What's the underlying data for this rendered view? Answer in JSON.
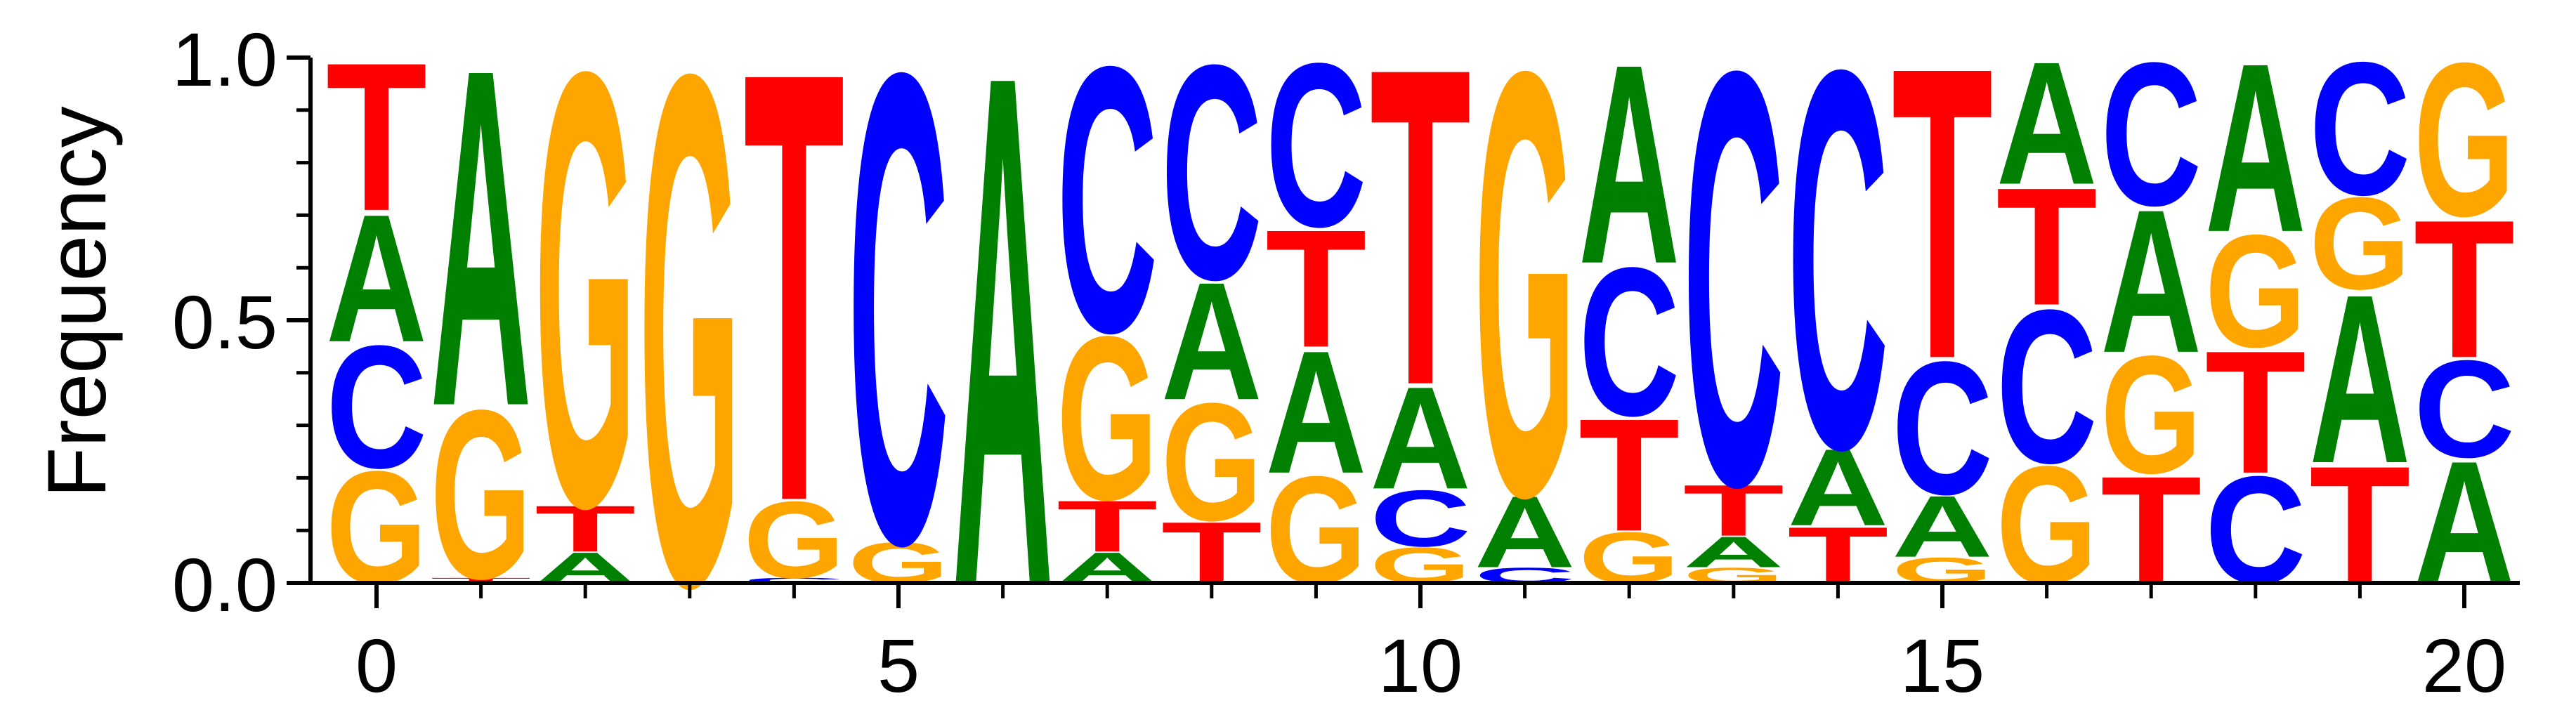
{
  "chart_data": {
    "type": "sequence-logo",
    "ylabel": "Frequency",
    "xlabel": "",
    "title": "",
    "ylim": [
      0,
      1
    ],
    "yticks": [
      "0.0",
      "0.5",
      "1.0"
    ],
    "yticks_values": [
      0.0,
      0.5,
      1.0
    ],
    "xticks": [
      "0",
      "5",
      "10",
      "15",
      "20"
    ],
    "xticks_values": [
      0,
      5,
      10,
      15,
      20
    ],
    "colors": {
      "A": "#008000",
      "C": "#0000ff",
      "G": "#ffa500",
      "T": "#ff0000"
    },
    "positions": [
      {
        "x": 0,
        "letters": [
          {
            "b": "G",
            "f": 0.22
          },
          {
            "b": "C",
            "f": 0.24
          },
          {
            "b": "A",
            "f": 0.25
          },
          {
            "b": "T",
            "f": 0.29
          }
        ]
      },
      {
        "x": 1,
        "letters": [
          {
            "b": "T",
            "f": 0.01
          },
          {
            "b": "G",
            "f": 0.33
          },
          {
            "b": "A",
            "f": 0.66
          }
        ]
      },
      {
        "x": 2,
        "letters": [
          {
            "b": "A",
            "f": 0.06
          },
          {
            "b": "T",
            "f": 0.09
          },
          {
            "b": "G",
            "f": 0.85
          }
        ]
      },
      {
        "x": 3,
        "letters": [
          {
            "b": "G",
            "f": 1.0
          }
        ]
      },
      {
        "x": 4,
        "letters": [
          {
            "b": "C",
            "f": 0.01
          },
          {
            "b": "G",
            "f": 0.15
          },
          {
            "b": "T",
            "f": 0.84
          }
        ]
      },
      {
        "x": 5,
        "letters": [
          {
            "b": "G",
            "f": 0.08
          },
          {
            "b": "C",
            "f": 0.92
          }
        ]
      },
      {
        "x": 6,
        "letters": [
          {
            "b": "T",
            "f": 0.0
          },
          {
            "b": "A",
            "f": 1.0
          }
        ]
      },
      {
        "x": 7,
        "letters": [
          {
            "b": "A",
            "f": 0.06
          },
          {
            "b": "T",
            "f": 0.1
          },
          {
            "b": "G",
            "f": 0.32
          },
          {
            "b": "C",
            "f": 0.52
          }
        ]
      },
      {
        "x": 8,
        "letters": [
          {
            "b": "T",
            "f": 0.12
          },
          {
            "b": "G",
            "f": 0.23
          },
          {
            "b": "A",
            "f": 0.23
          },
          {
            "b": "C",
            "f": 0.42
          }
        ]
      },
      {
        "x": 9,
        "letters": [
          {
            "b": "G",
            "f": 0.21
          },
          {
            "b": "A",
            "f": 0.24
          },
          {
            "b": "T",
            "f": 0.23
          },
          {
            "b": "C",
            "f": 0.32
          }
        ]
      },
      {
        "x": 10,
        "letters": [
          {
            "b": "G",
            "f": 0.07
          },
          {
            "b": "C",
            "f": 0.11
          },
          {
            "b": "A",
            "f": 0.2
          },
          {
            "b": "T",
            "f": 0.62
          }
        ]
      },
      {
        "x": 11,
        "letters": [
          {
            "b": "C",
            "f": 0.03
          },
          {
            "b": "A",
            "f": 0.14
          },
          {
            "b": "G",
            "f": 0.83
          }
        ]
      },
      {
        "x": 12,
        "letters": [
          {
            "b": "G",
            "f": 0.1
          },
          {
            "b": "T",
            "f": 0.22
          },
          {
            "b": "C",
            "f": 0.29
          },
          {
            "b": "A",
            "f": 0.39
          }
        ]
      },
      {
        "x": 13,
        "letters": [
          {
            "b": "G",
            "f": 0.03
          },
          {
            "b": "A",
            "f": 0.06
          },
          {
            "b": "T",
            "f": 0.1
          },
          {
            "b": "C",
            "f": 0.81
          }
        ]
      },
      {
        "x": 14,
        "letters": [
          {
            "b": "T",
            "f": 0.11
          },
          {
            "b": "A",
            "f": 0.15
          },
          {
            "b": "C",
            "f": 0.74
          }
        ]
      },
      {
        "x": 15,
        "letters": [
          {
            "b": "G",
            "f": 0.05
          },
          {
            "b": "A",
            "f": 0.12
          },
          {
            "b": "C",
            "f": 0.26
          },
          {
            "b": "T",
            "f": 0.57
          }
        ]
      },
      {
        "x": 16,
        "letters": [
          {
            "b": "G",
            "f": 0.23
          },
          {
            "b": "C",
            "f": 0.3
          },
          {
            "b": "T",
            "f": 0.23
          },
          {
            "b": "A",
            "f": 0.24
          }
        ]
      },
      {
        "x": 17,
        "letters": [
          {
            "b": "T",
            "f": 0.21
          },
          {
            "b": "G",
            "f": 0.23
          },
          {
            "b": "A",
            "f": 0.28
          },
          {
            "b": "C",
            "f": 0.28
          }
        ]
      },
      {
        "x": 18,
        "letters": [
          {
            "b": "C",
            "f": 0.21
          },
          {
            "b": "T",
            "f": 0.24
          },
          {
            "b": "G",
            "f": 0.22
          },
          {
            "b": "A",
            "f": 0.33
          }
        ]
      },
      {
        "x": 19,
        "letters": [
          {
            "b": "T",
            "f": 0.23
          },
          {
            "b": "A",
            "f": 0.33
          },
          {
            "b": "G",
            "f": 0.18
          },
          {
            "b": "C",
            "f": 0.26
          }
        ]
      },
      {
        "x": 20,
        "letters": [
          {
            "b": "A",
            "f": 0.24
          },
          {
            "b": "C",
            "f": 0.19
          },
          {
            "b": "T",
            "f": 0.27
          },
          {
            "b": "G",
            "f": 0.3
          }
        ]
      }
    ]
  }
}
